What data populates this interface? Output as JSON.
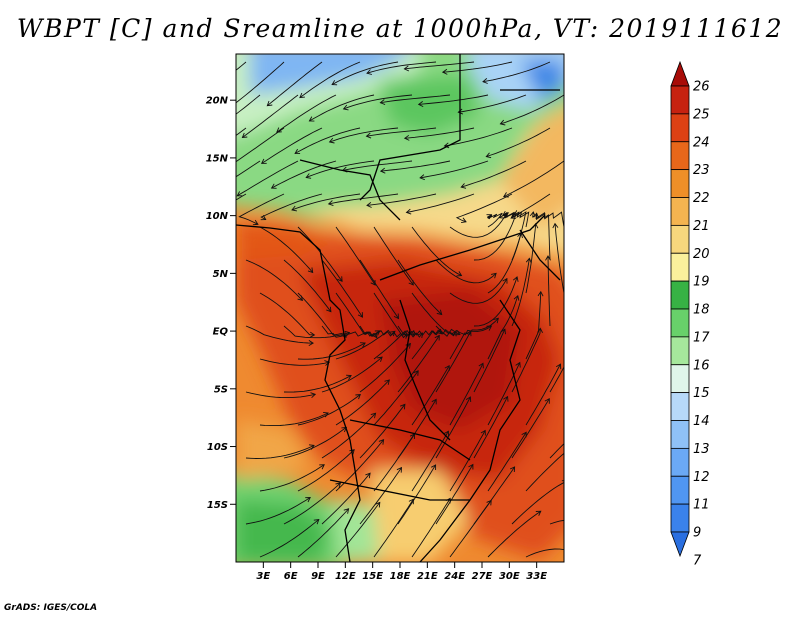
{
  "title": "WBPT [C] and Sreamline at 1000hPa, VT: 2019111612",
  "credit": "GrADS: IGES/COLA",
  "map": {
    "lon_range": [
      0,
      36
    ],
    "lat_range": [
      -20,
      24
    ],
    "lat_ticks": [
      {
        "value": 20,
        "label": "20N"
      },
      {
        "value": 15,
        "label": "15N"
      },
      {
        "value": 10,
        "label": "10N"
      },
      {
        "value": 5,
        "label": "5N"
      },
      {
        "value": 0,
        "label": "EQ"
      },
      {
        "value": -5,
        "label": "5S"
      },
      {
        "value": -10,
        "label": "10S"
      },
      {
        "value": -15,
        "label": "15S"
      }
    ],
    "lon_ticks": [
      {
        "value": 3,
        "label": "3E"
      },
      {
        "value": 6,
        "label": "6E"
      },
      {
        "value": 9,
        "label": "9E"
      },
      {
        "value": 12,
        "label": "12E"
      },
      {
        "value": 15,
        "label": "15E"
      },
      {
        "value": 18,
        "label": "18E"
      },
      {
        "value": 21,
        "label": "21E"
      },
      {
        "value": 24,
        "label": "24E"
      },
      {
        "value": 27,
        "label": "27E"
      },
      {
        "value": 30,
        "label": "30E"
      },
      {
        "value": 33,
        "label": "33E"
      }
    ]
  },
  "colorbar": {
    "levels": [
      "7",
      "9",
      "11",
      "12",
      "13",
      "14",
      "15",
      "16",
      "17",
      "18",
      "19",
      "20",
      "21",
      "22",
      "23",
      "24",
      "25",
      "26"
    ],
    "colors": [
      "#2a6fe0",
      "#3a82eb",
      "#5096f2",
      "#6ba9f5",
      "#8fc1f7",
      "#b7d9f9",
      "#e0f5ea",
      "#a6e89c",
      "#68d16a",
      "#37b244",
      "#faf09c",
      "#f7d77d",
      "#f4b450",
      "#ee8f28",
      "#e8671a",
      "#dd4114",
      "#c62210",
      "#a80c08"
    ]
  }
}
